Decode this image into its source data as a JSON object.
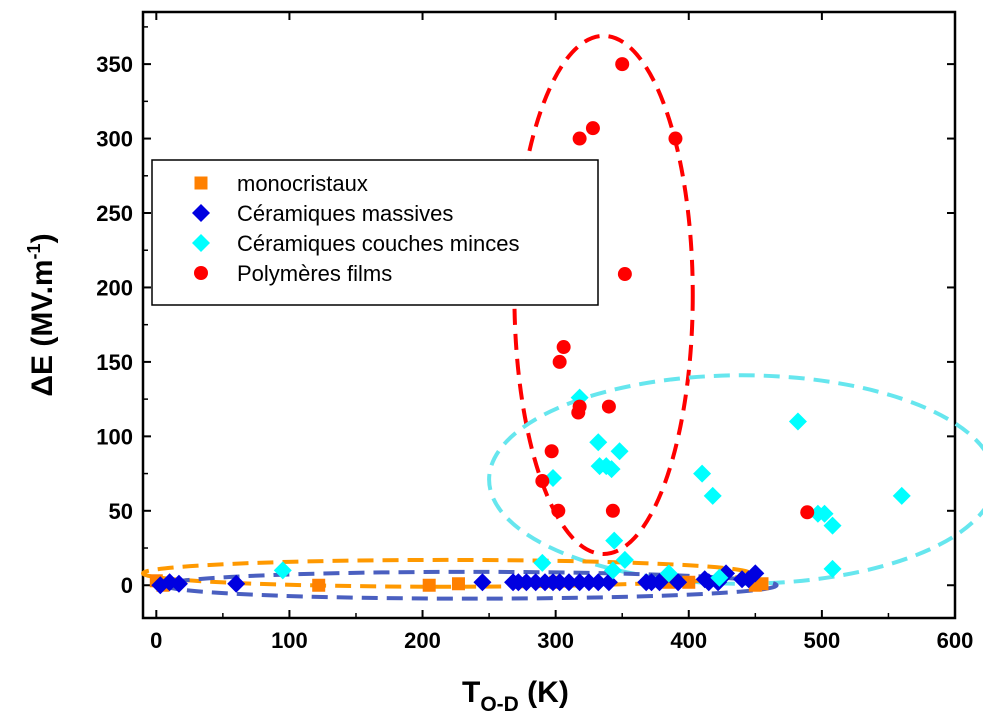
{
  "chart_data": {
    "type": "scatter",
    "xlabel": {
      "main": "T",
      "sub": "O-D",
      "unit": " (K)"
    },
    "ylabel": {
      "main": "ΔE (MV.m",
      "sup": "-1",
      "end": ")"
    },
    "xlim": [
      -10,
      600
    ],
    "ylim": [
      -22,
      385
    ],
    "x_ticks": [
      0,
      100,
      200,
      300,
      400,
      500,
      600
    ],
    "y_ticks": [
      0,
      50,
      100,
      150,
      200,
      250,
      300,
      350
    ],
    "grid": false,
    "legend_position": "upper-left",
    "series": [
      {
        "name": "monocristaux",
        "marker": "square",
        "color": "#ff8000",
        "points": [
          [
            0,
            3
          ],
          [
            5,
            0
          ],
          [
            122,
            0
          ],
          [
            205,
            0
          ],
          [
            227,
            1
          ],
          [
            300,
            2
          ],
          [
            385,
            2
          ],
          [
            400,
            2
          ],
          [
            450,
            0
          ],
          [
            455,
            1
          ]
        ]
      },
      {
        "name": "Céramiques massives",
        "marker": "diamond",
        "color": "#0000e0",
        "points": [
          [
            3,
            0
          ],
          [
            10,
            2
          ],
          [
            17,
            1
          ],
          [
            60,
            1
          ],
          [
            245,
            2
          ],
          [
            268,
            2
          ],
          [
            272,
            2
          ],
          [
            278,
            2
          ],
          [
            285,
            2
          ],
          [
            292,
            2
          ],
          [
            298,
            2
          ],
          [
            303,
            2
          ],
          [
            310,
            2
          ],
          [
            318,
            2
          ],
          [
            325,
            2
          ],
          [
            332,
            2
          ],
          [
            340,
            2
          ],
          [
            368,
            2
          ],
          [
            372,
            2
          ],
          [
            378,
            2
          ],
          [
            392,
            2
          ],
          [
            412,
            4
          ],
          [
            415,
            2
          ],
          [
            422,
            2
          ],
          [
            428,
            8
          ],
          [
            440,
            4
          ],
          [
            445,
            4
          ],
          [
            450,
            8
          ]
        ]
      },
      {
        "name": "Céramiques couches minces",
        "marker": "diamond",
        "color": "#00ffff",
        "points": [
          [
            95,
            10
          ],
          [
            290,
            15
          ],
          [
            298,
            72
          ],
          [
            318,
            126
          ],
          [
            332,
            96
          ],
          [
            333,
            80
          ],
          [
            338,
            80
          ],
          [
            342,
            78
          ],
          [
            343,
            10
          ],
          [
            344,
            30
          ],
          [
            348,
            90
          ],
          [
            352,
            17
          ],
          [
            385,
            8
          ],
          [
            410,
            75
          ],
          [
            418,
            60
          ],
          [
            423,
            5
          ],
          [
            482,
            110
          ],
          [
            497,
            48
          ],
          [
            502,
            48
          ],
          [
            508,
            40
          ],
          [
            508,
            11
          ],
          [
            560,
            60
          ]
        ]
      },
      {
        "name": "Polymères films",
        "marker": "circle",
        "color": "#ff0000",
        "points": [
          [
            290,
            70
          ],
          [
            297,
            90
          ],
          [
            302,
            50
          ],
          [
            303,
            150
          ],
          [
            306,
            160
          ],
          [
            317,
            116
          ],
          [
            318,
            120
          ],
          [
            318,
            300
          ],
          [
            328,
            307
          ],
          [
            340,
            120
          ],
          [
            343,
            50
          ],
          [
            350,
            350
          ],
          [
            352,
            209
          ],
          [
            390,
            300
          ],
          [
            489,
            49
          ]
        ]
      }
    ],
    "annotations": [
      {
        "shape": "ellipse",
        "color": "#ff0000",
        "cx": 336,
        "cy": 195,
        "rx": 67,
        "ry": 174
      },
      {
        "shape": "ellipse",
        "color": "#66e6ee",
        "cx": 440,
        "cy": 71,
        "rx": 190,
        "ry": 70
      },
      {
        "shape": "ellipse",
        "color": "#ff9900",
        "cx": 218,
        "cy": 8,
        "rx": 228,
        "ry": 9
      },
      {
        "shape": "ellipse",
        "color": "#4a5fc0",
        "cx": 236,
        "cy": 0,
        "rx": 230,
        "ry": 9
      }
    ]
  }
}
